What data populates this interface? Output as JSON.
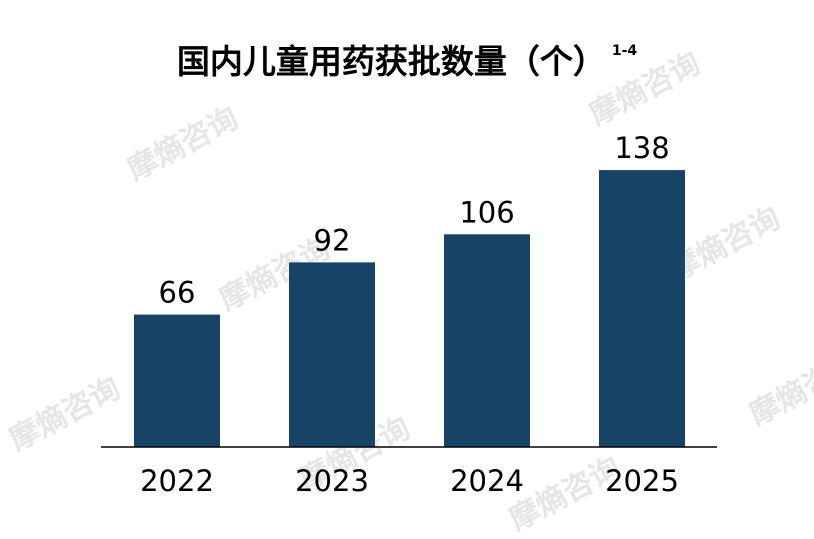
{
  "watermark": {
    "text": "摩熵咨询"
  },
  "chart_data": {
    "type": "bar",
    "title": "国内儿童用药获批数量（个）",
    "title_superscript": "1-4",
    "categories": [
      "2022",
      "2023",
      "2024",
      "2025"
    ],
    "values": [
      66,
      92,
      106,
      138
    ],
    "ylim": [
      0,
      150
    ],
    "bar_color": "#174466",
    "data_labels": true,
    "grid": false,
    "legend": "none"
  }
}
